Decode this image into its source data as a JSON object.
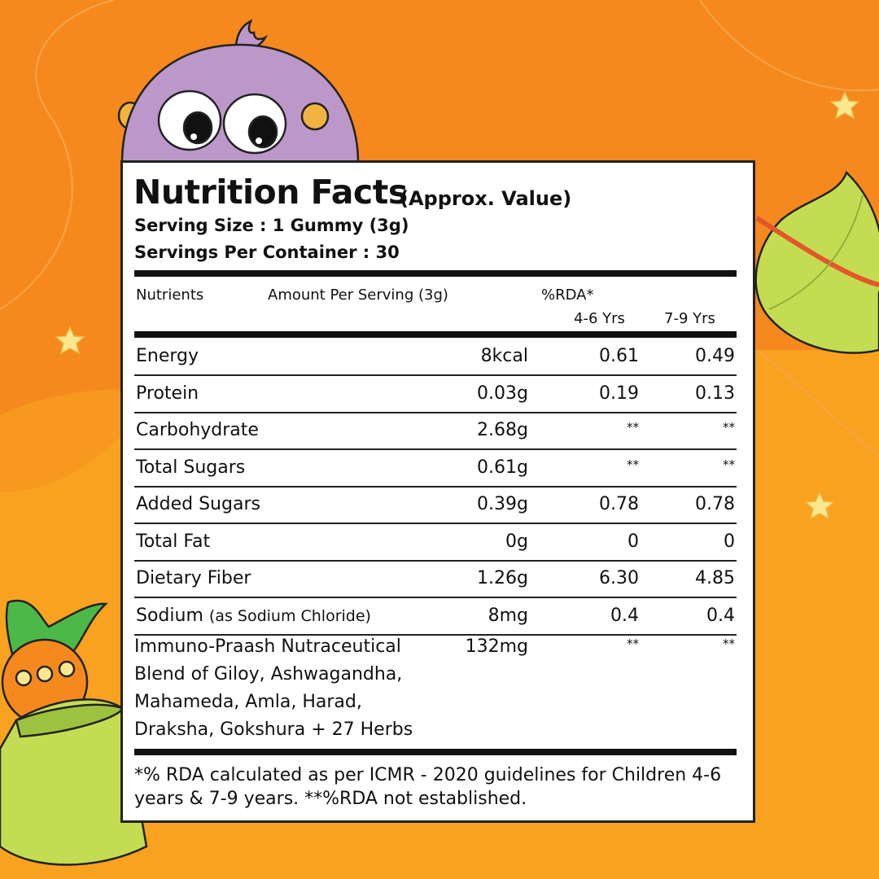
{
  "colors": {
    "background_orange": "#f5891e",
    "background_wave": "#f9a21f",
    "mascot_purple": "#bb98c9",
    "leaf_green": "#c4dc52",
    "bottle_green": "#4cb848",
    "star_yellow": "#fbe88e"
  },
  "icons": [
    "purple-mascot-icon",
    "leaf-icon",
    "bottle-mascot-icon",
    "star-icon"
  ],
  "label": {
    "title": "Nutrition Facts",
    "title_note": "(Approx. Value)",
    "serving_size": "Serving Size : 1 Gummy (3g)",
    "servings_per_container": "Servings Per Container : 30",
    "headers": {
      "nutrients": "Nutrients",
      "amount": "Amount Per Serving (3g)",
      "rda": "%RDA*",
      "age1": "4-6 Yrs",
      "age2": "7-9 Yrs"
    },
    "rows": [
      {
        "name": "Energy",
        "amount": "8kcal",
        "rda_4_6": "0.61",
        "rda_7_9": "0.49"
      },
      {
        "name": "Protein",
        "amount": "0.03g",
        "rda_4_6": "0.19",
        "rda_7_9": "0.13"
      },
      {
        "name": "Carbohydrate",
        "amount": "2.68g",
        "rda_4_6": "**",
        "rda_7_9": "**"
      },
      {
        "name": "Total Sugars",
        "amount": "0.61g",
        "rda_4_6": "**",
        "rda_7_9": "**"
      },
      {
        "name": "Added Sugars",
        "amount": "0.39g",
        "rda_4_6": "0.78",
        "rda_7_9": "0.78"
      },
      {
        "name": "Total Fat",
        "amount": "0g",
        "rda_4_6": "0",
        "rda_7_9": "0"
      },
      {
        "name": "Dietary Fiber",
        "amount": "1.26g",
        "rda_4_6": "6.30",
        "rda_7_9": "4.85"
      },
      {
        "name": "Sodium",
        "name_note": "(as Sodium Chloride)",
        "amount": "8mg",
        "rda_4_6": "0.4",
        "rda_7_9": "0.4"
      },
      {
        "name": "Immuno-Praash Nutraceutical Blend of Giloy, Ashwagandha, Mahameda, Amla, Harad, Draksha, Gokshura + 27 Herbs",
        "amount": "132mg",
        "rda_4_6": "**",
        "rda_7_9": "**"
      }
    ],
    "footnote": "*% RDA calculated as per ICMR - 2020 guidelines for Children 4-6 years & 7-9 years. **%RDA not established."
  }
}
